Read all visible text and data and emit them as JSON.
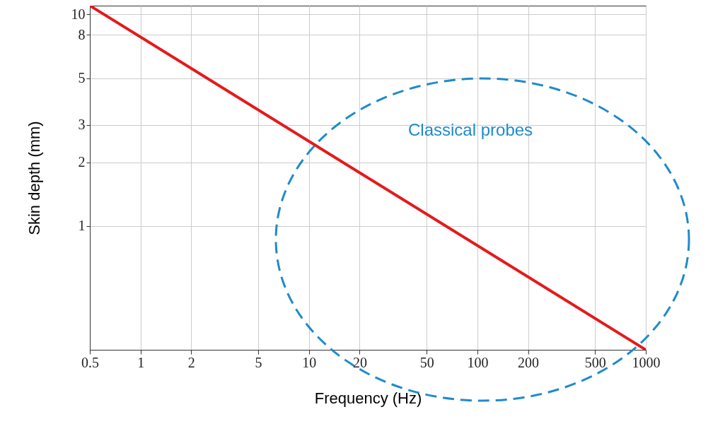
{
  "chart_data": {
    "type": "line",
    "xlabel": "Frequency (Hz)",
    "ylabel": "Skin depth (mm)",
    "x": [
      0.5,
      1000
    ],
    "series": [
      {
        "color": "#e41a1c",
        "values": [
          11,
          0.26
        ]
      }
    ],
    "xlim": [
      0.5,
      1000
    ],
    "ylim": [
      0.26,
      11
    ],
    "xticks": [
      0.5,
      1,
      2,
      5,
      10,
      20,
      50,
      100,
      200,
      500,
      1000
    ],
    "yticks": [
      1,
      2,
      3,
      5,
      8,
      10
    ],
    "log": "xy",
    "grid": true,
    "annotations": [
      "Classical probes"
    ]
  }
}
